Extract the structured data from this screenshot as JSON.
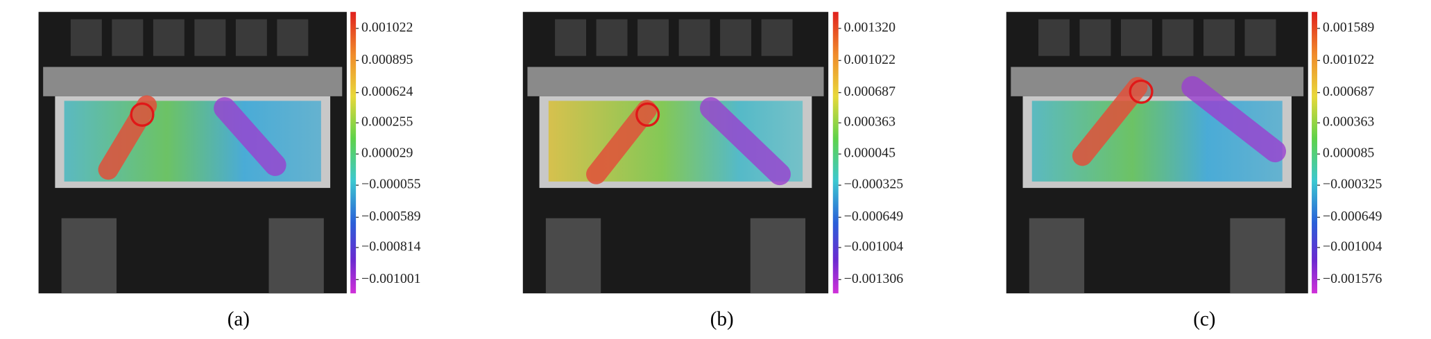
{
  "panels": [
    {
      "caption": "(a)",
      "scale_labels": [
        "0.001022",
        "0.000895",
        "0.000624",
        "0.000255",
        "0.000029",
        "−0.000055",
        "−0.000589",
        "−0.000814",
        "−0.001001"
      ]
    },
    {
      "caption": "(b)",
      "scale_labels": [
        "0.001320",
        "0.001022",
        "0.000687",
        "0.000363",
        "0.000045",
        "−0.000325",
        "−0.000649",
        "−0.001004",
        "−0.001306"
      ]
    },
    {
      "caption": "(c)",
      "scale_labels": [
        "0.001589",
        "0.001022",
        "0.000687",
        "0.000363",
        "0.000085",
        "−0.000325",
        "−0.000649",
        "−0.001004",
        "−0.001576"
      ]
    }
  ]
}
